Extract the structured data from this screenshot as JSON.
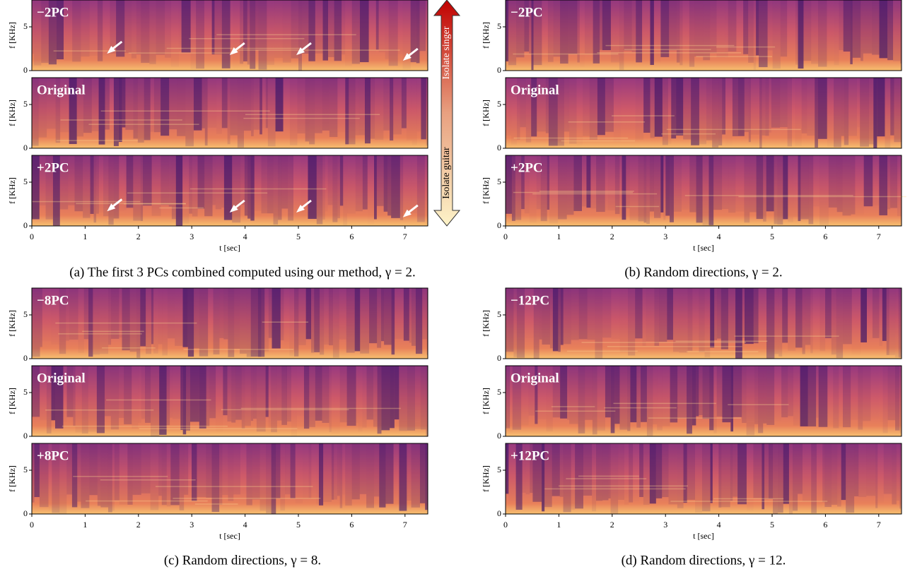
{
  "figure": {
    "axis": {
      "ylabel": "f [KHz]",
      "yticks": [
        "0",
        "5"
      ],
      "xlabel": "t [sec]",
      "xticks": [
        "0",
        "1",
        "2",
        "3",
        "4",
        "5",
        "6",
        "7"
      ]
    },
    "panels": [
      {
        "rows": [
          "−2PC",
          "Original",
          "+2PC"
        ],
        "caption": "(a) The first 3 PCs combined computed using our method, γ = 2."
      },
      {
        "rows": [
          "−2PC",
          "Original",
          "+2PC"
        ],
        "caption": "(b) Random directions, γ = 2."
      },
      {
        "rows": [
          "−8PC",
          "Original",
          "+8PC"
        ],
        "caption": "(c) Random directions, γ = 8."
      },
      {
        "rows": [
          "−12PC",
          "Original",
          "+12PC"
        ],
        "caption": "(d) Random directions, γ = 12."
      }
    ],
    "arrow": {
      "top": "Isolate singer",
      "bottom": "Isolate guitar"
    }
  }
}
